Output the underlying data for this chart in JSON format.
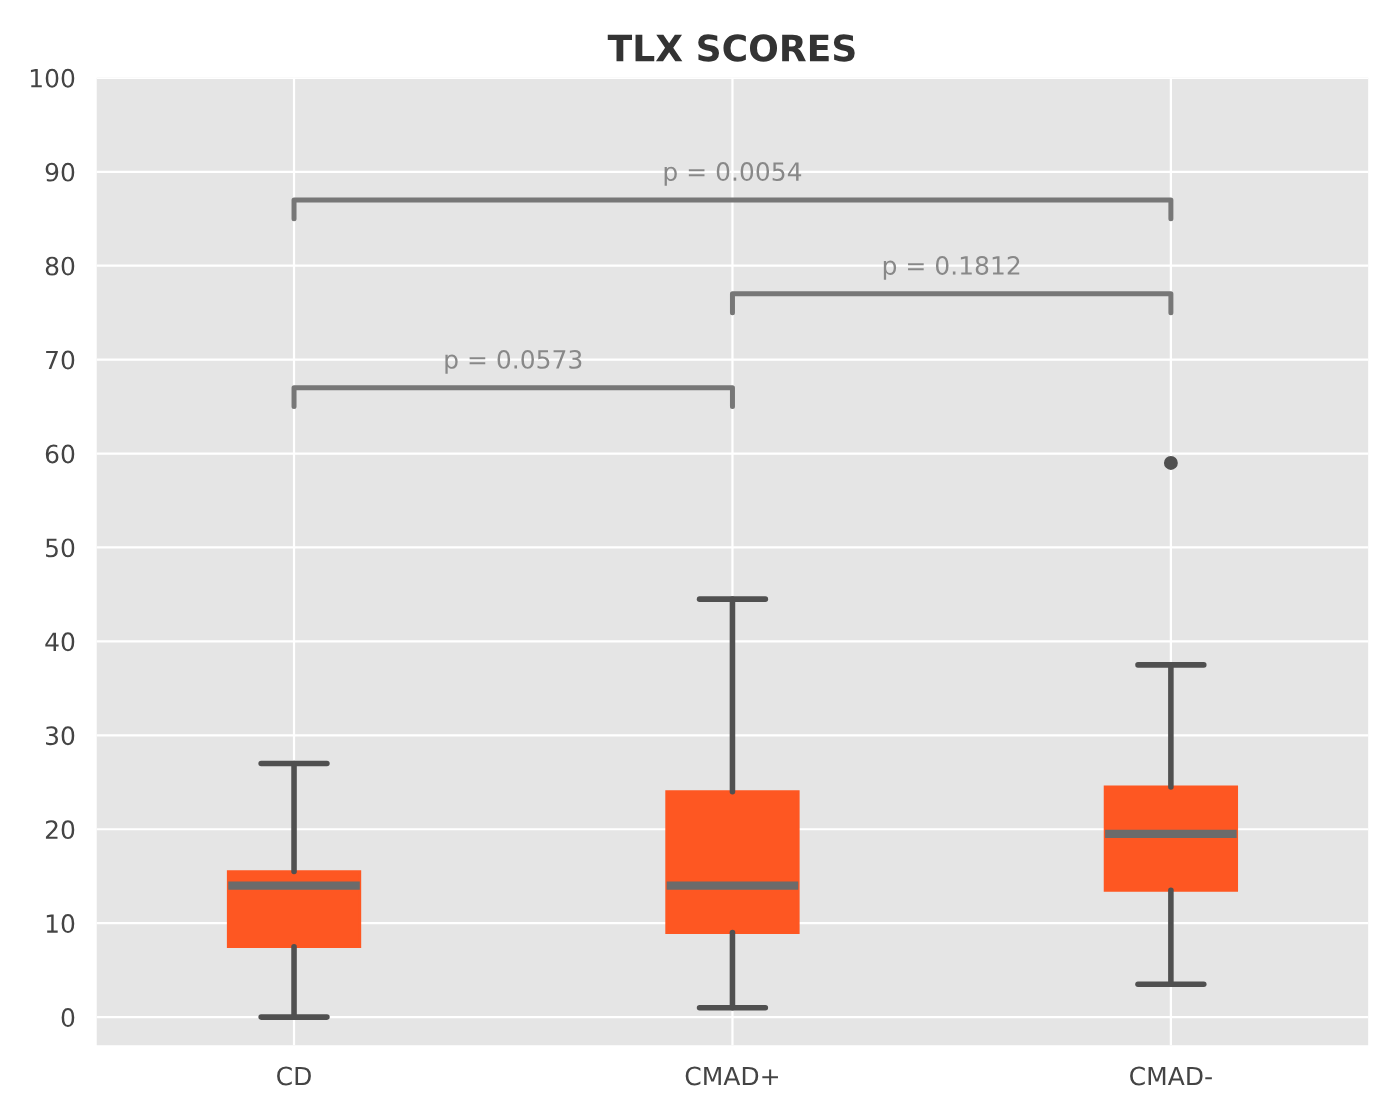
{
  "chart_data": {
    "type": "box",
    "title": "TLX SCORES",
    "categories": [
      "CD",
      "CMAD+",
      "CMAD-"
    ],
    "boxes": [
      {
        "low": 0,
        "q1": 7.5,
        "median": 14,
        "q3": 15.5,
        "high": 27
      },
      {
        "low": 1,
        "q1": 9,
        "median": 14,
        "q3": 24,
        "high": 44.5
      },
      {
        "low": 3.5,
        "q1": 13.5,
        "median": 19.5,
        "q3": 24.5,
        "high": 37.5,
        "outliers": [
          59
        ]
      }
    ],
    "color": "#fe5722",
    "ylim": [
      -3,
      100
    ],
    "yticks": [
      0,
      10,
      20,
      30,
      40,
      50,
      60,
      70,
      80,
      90,
      100
    ],
    "grid": true,
    "annotations": [
      "p = 0.0054",
      "p = 0.1812",
      "p = 0.0573"
    ]
  }
}
